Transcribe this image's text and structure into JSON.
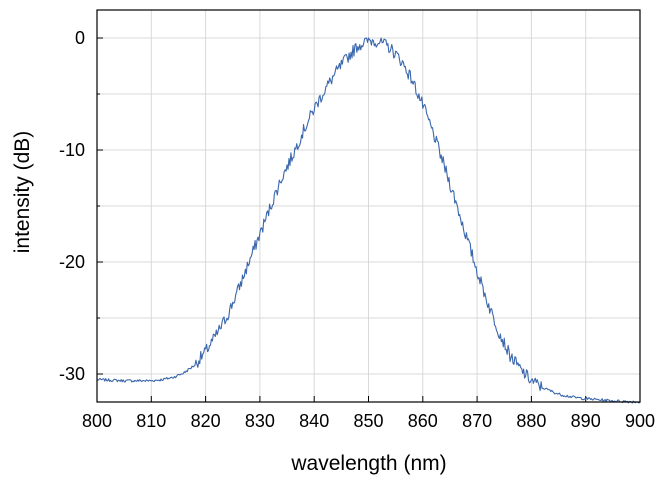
{
  "chart_data": {
    "type": "line",
    "xlabel": "wavelength (nm)",
    "ylabel": "intensity (dB)",
    "xlim": [
      800,
      900
    ],
    "ylim": [
      -32.5,
      2.5
    ],
    "x_ticks": [
      800,
      810,
      820,
      830,
      840,
      850,
      860,
      870,
      880,
      890,
      900
    ],
    "x_tick_labels": [
      "800",
      "810",
      "820",
      "830",
      "840",
      "850",
      "860",
      "870",
      "880",
      "890",
      "900"
    ],
    "y_ticks": [
      0,
      -10,
      -20,
      -30
    ],
    "y_tick_labels": [
      "0",
      "-10",
      "-20",
      "-30"
    ],
    "y_minor_ticks": [
      -5,
      -15,
      -25
    ],
    "grid": true,
    "legend": "none",
    "colors": {
      "line": "#3b67ad",
      "grid": "#d9d9d9",
      "axis": "#000000"
    },
    "series": [
      {
        "x": [
          800,
          805,
          810,
          812,
          814,
          816,
          818,
          820,
          822,
          824,
          826,
          828,
          830,
          832,
          834,
          836,
          838,
          840,
          842,
          844,
          846,
          848,
          850,
          852,
          854,
          856,
          858,
          860,
          862,
          864,
          866,
          868,
          870,
          872,
          874,
          876,
          878,
          880,
          882,
          885,
          888,
          890,
          895,
          900
        ],
        "y": [
          -30.5,
          -30.6,
          -30.6,
          -30.5,
          -30.3,
          -29.9,
          -29.2,
          -28.0,
          -26.5,
          -24.8,
          -22.5,
          -20.0,
          -17.5,
          -15.0,
          -12.5,
          -10.5,
          -8.3,
          -6.3,
          -4.6,
          -3.1,
          -1.8,
          -0.7,
          -0.2,
          -0.3,
          -0.9,
          -2.0,
          -3.7,
          -6.0,
          -8.6,
          -11.5,
          -14.5,
          -17.7,
          -20.8,
          -23.7,
          -26.2,
          -28.3,
          -29.6,
          -30.6,
          -31.2,
          -31.8,
          -32.1,
          -32.2,
          -32.4,
          -32.5
        ]
      }
    ]
  }
}
